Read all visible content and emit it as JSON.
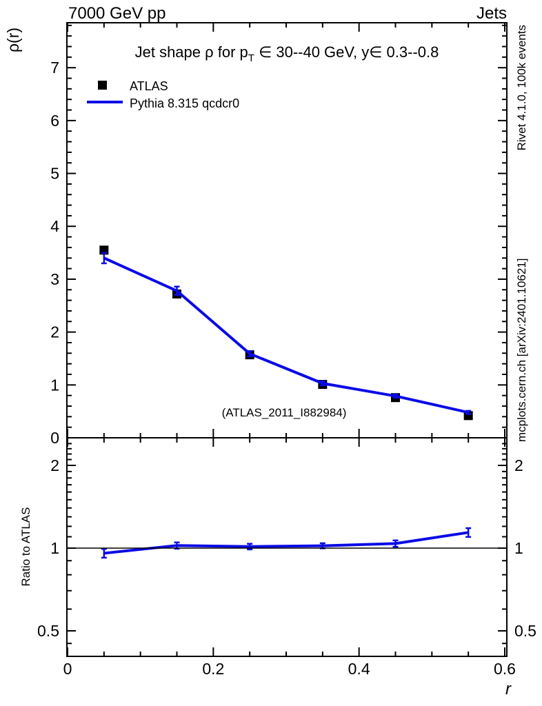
{
  "header": {
    "beam": "7000 GeV pp",
    "collection": "Jets"
  },
  "title": {
    "part1": "Jet shape ρ for p",
    "sub": "T",
    "part2": " ∈ 30--40 GeV, y∈ 0.3--0.8"
  },
  "legend": [
    {
      "label": "ATLAS",
      "type": "marker"
    },
    {
      "label": "Pythia 8.315 qcdcr0",
      "type": "line"
    }
  ],
  "watermark": "(ATLAS_2011_I882984)",
  "side_notes": {
    "top": "Rivet 4.1.0,  100k events",
    "bottom": "mcplots.cern.ch [arXiv:2401.10621]"
  },
  "axes": {
    "main_y_label": "ρ(r)",
    "ratio_y_label": "Ratio to ATLAS",
    "x_label": "r",
    "main_y_ticks": [
      {
        "label": "0",
        "value": 0
      },
      {
        "label": "1",
        "value": 1
      },
      {
        "label": "2",
        "value": 2
      },
      {
        "label": "3",
        "value": 3
      },
      {
        "label": "4",
        "value": 4
      },
      {
        "label": "5",
        "value": 5
      },
      {
        "label": "6",
        "value": 6
      },
      {
        "label": "7",
        "value": 7
      }
    ],
    "x_ticks": [
      {
        "label": "0",
        "value": 0
      },
      {
        "label": "0.2",
        "value": 0.2
      },
      {
        "label": "0.4",
        "value": 0.4
      },
      {
        "label": "0.6",
        "value": 0.6
      }
    ],
    "ratio_y_ticks": [
      {
        "label": "0.5",
        "value": 0.5
      },
      {
        "label": "1",
        "value": 1
      },
      {
        "label": "2",
        "value": 2
      }
    ]
  },
  "colors": {
    "data": "#000000",
    "mc": "#0a0ae6",
    "note": "#999999",
    "watermark": "#b3b3b3",
    "frame": "#000000"
  },
  "chart_data": {
    "type": "line",
    "title": "Jet shape ρ for p_T ∈ 30--40 GeV, y ∈ 0.3--0.8",
    "xlabel": "r",
    "ylabel": "ρ(r)",
    "legend_position": "top-left",
    "grid": false,
    "x": [
      0.05,
      0.15,
      0.25,
      0.35,
      0.45,
      0.55
    ],
    "series": [
      {
        "name": "ATLAS",
        "type": "scatter",
        "marker": "square",
        "color": "#000000",
        "values": [
          3.55,
          2.72,
          1.57,
          1.01,
          0.76,
          0.42
        ]
      },
      {
        "name": "Pythia 8.315 qcdcr0",
        "type": "line",
        "color": "#0a0ae6",
        "values": [
          3.4,
          2.78,
          1.59,
          1.03,
          0.79,
          0.48
        ],
        "errors": [
          0.1,
          0.08,
          0.05,
          0.04,
          0.03,
          0.03
        ]
      }
    ],
    "main_panel": {
      "xlim": [
        0,
        0.6
      ],
      "ylim": [
        0,
        7.85
      ],
      "yscale": "linear",
      "yticks": [
        0,
        1,
        2,
        3,
        4,
        5,
        6,
        7
      ],
      "minor_y_step": 0.2,
      "minor_x_step": 0.05
    },
    "ratio_panel": {
      "label": "Ratio to ATLAS",
      "yscale": "log",
      "ylim": [
        0.4,
        2.52
      ],
      "yticks": [
        0.5,
        1,
        2
      ],
      "reference": 1,
      "values": [
        0.958,
        1.022,
        1.013,
        1.02,
        1.039,
        1.14
      ],
      "errors": [
        0.035,
        0.027,
        0.024,
        0.022,
        0.028,
        0.042
      ]
    }
  }
}
